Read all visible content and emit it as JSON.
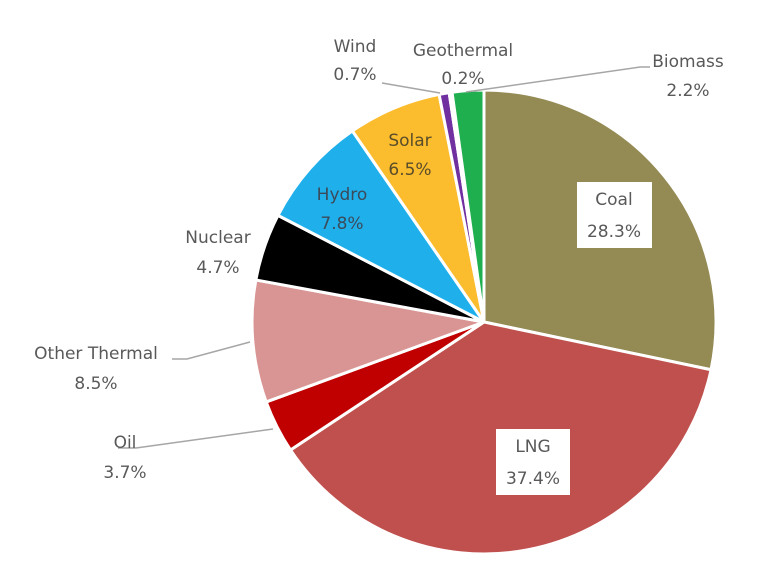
{
  "chart_data": {
    "type": "pie",
    "title": "",
    "start_angle_deg": 0,
    "direction": "clockwise",
    "slices": [
      {
        "label": "Coal",
        "value": 28.3,
        "display": "28.3%",
        "color": "#948A54",
        "label_style": "boxed-inside"
      },
      {
        "label": "LNG",
        "value": 37.4,
        "display": "37.4%",
        "color": "#C0504D",
        "label_style": "boxed-inside"
      },
      {
        "label": "Oil",
        "value": 3.7,
        "display": "3.7%",
        "color": "#C00000",
        "label_style": "outside-leader"
      },
      {
        "label": "Other Thermal",
        "value": 8.5,
        "display": "8.5%",
        "color": "#D99594",
        "label_style": "outside-leader"
      },
      {
        "label": "Nuclear",
        "value": 4.7,
        "display": "4.7%",
        "color": "#000000",
        "label_style": "outside"
      },
      {
        "label": "Hydro",
        "value": 7.8,
        "display": "7.8%",
        "color": "#1FB0EC",
        "label_style": "inside"
      },
      {
        "label": "Solar",
        "value": 6.5,
        "display": "6.5%",
        "color": "#FBBC2D",
        "label_style": "inside"
      },
      {
        "label": "Wind",
        "value": 0.7,
        "display": "0.7%",
        "color": "#7030A0",
        "label_style": "outside-leader"
      },
      {
        "label": "Geothermal",
        "value": 0.2,
        "display": "0.2%",
        "color": "#FFFFFF",
        "label_style": "outside"
      },
      {
        "label": "Biomass",
        "value": 2.2,
        "display": "2.2%",
        "color": "#1FAF4F",
        "label_style": "outside-leader"
      }
    ],
    "legend": "none"
  }
}
